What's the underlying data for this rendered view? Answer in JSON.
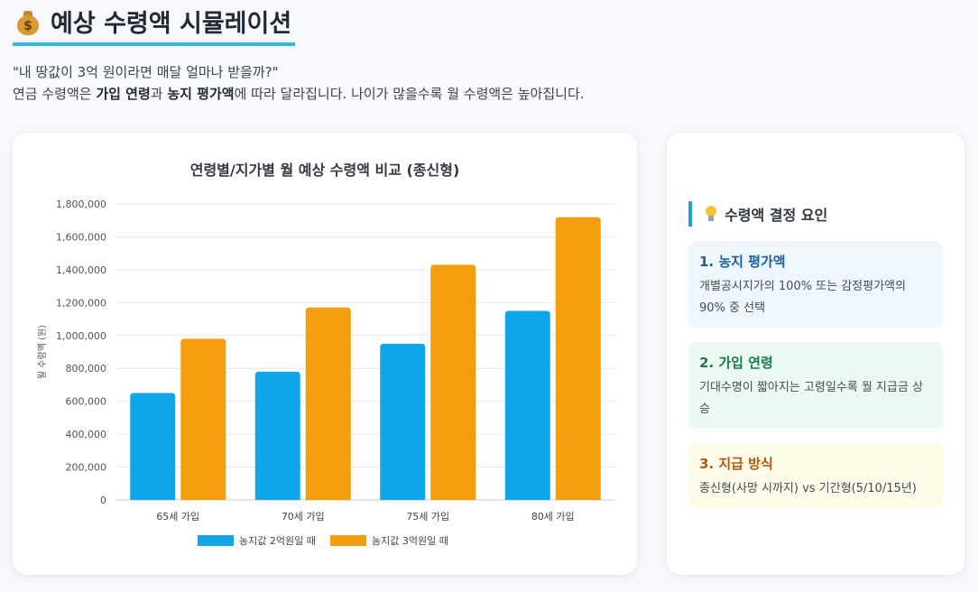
{
  "page": {
    "title": "예상 수령액 시뮬레이션",
    "icon": "money-bag-icon",
    "intro_question": "\"내 땅값이 3억 원이라면 매달 얼마나 받을까?\"",
    "intro_pre": "연금 수령액은 ",
    "intro_bold1": "가입 연령",
    "intro_mid": "과 ",
    "intro_bold2": "농지 평가액",
    "intro_post": "에 따라 달라집니다. 나이가 많을수록 월 수령액은 높아집니다."
  },
  "chart_data": {
    "type": "bar",
    "title": "연령별/지가별 월 예상 수령액 비교 (종신형)",
    "ylabel": "월 수령액 (원)",
    "xlabel": "",
    "categories": [
      "65세 가입",
      "70세 가입",
      "75세 가입",
      "80세 가입"
    ],
    "series": [
      {
        "name": "농지값 2억원일 때",
        "color": "#0ea5e9",
        "values": [
          650000,
          780000,
          950000,
          1150000
        ]
      },
      {
        "name": "농지값 3억원일 때",
        "color": "#f59e0b",
        "values": [
          980000,
          1170000,
          1430000,
          1720000
        ]
      }
    ],
    "ylim": [
      0,
      1800000
    ],
    "yticks": [
      "0",
      "200,000",
      "400,000",
      "600,000",
      "800,000",
      "1,000,000",
      "1,200,000",
      "1,400,000",
      "1,600,000",
      "1,800,000"
    ],
    "grid": true,
    "legend": "bottom"
  },
  "sidebar": {
    "heading": "수령액 결정 요인",
    "heading_icon": "light-bulb-icon",
    "factors": [
      {
        "title": "1. 농지 평가액",
        "desc": "개별공시지가의 100% 또는 감정평가액의 90% 중 선택"
      },
      {
        "title": "2. 가입 연령",
        "desc": "기대수명이 짧아지는 고령일수록 월 지급금 상승"
      },
      {
        "title": "3. 지급 방식",
        "desc": "종신형(사망 시까지) vs 기간형(5/10/15년)"
      }
    ]
  }
}
